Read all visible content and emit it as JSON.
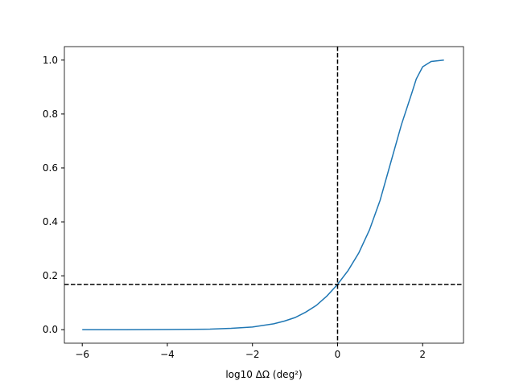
{
  "chart_data": {
    "type": "line",
    "xlabel": "log10 ΔΩ (deg²)",
    "x": [
      -6,
      -5,
      -4,
      -3,
      -2.5,
      -2,
      -1.5,
      -1.25,
      -1,
      -0.75,
      -0.5,
      -0.25,
      0,
      0.25,
      0.5,
      0.75,
      1,
      1.25,
      1.5,
      1.75,
      1.85,
      2,
      2.2,
      2.5
    ],
    "series": [
      {
        "color": "#1f77b4",
        "values": [
          0,
          0,
          0.0005,
          0.002,
          0.005,
          0.01,
          0.022,
          0.032,
          0.045,
          0.065,
          0.09,
          0.125,
          0.168,
          0.22,
          0.285,
          0.37,
          0.48,
          0.62,
          0.76,
          0.88,
          0.93,
          0.975,
          0.995,
          1.0
        ]
      }
    ],
    "xlim": [
      -6.42,
      2.96
    ],
    "ylim": [
      -0.05,
      1.05
    ],
    "xticks": [
      {
        "value": -6,
        "label": "−6"
      },
      {
        "value": -4,
        "label": "−4"
      },
      {
        "value": -2,
        "label": "−2"
      },
      0,
      2
    ],
    "yticks": [
      {
        "value": 0,
        "label": "0.0"
      },
      0.2,
      0.4,
      0.6,
      0.8,
      {
        "value": 1,
        "label": "1.0"
      }
    ],
    "hlines": [
      0.168
    ],
    "vlines": [
      0
    ],
    "ref_color": "#000000"
  }
}
